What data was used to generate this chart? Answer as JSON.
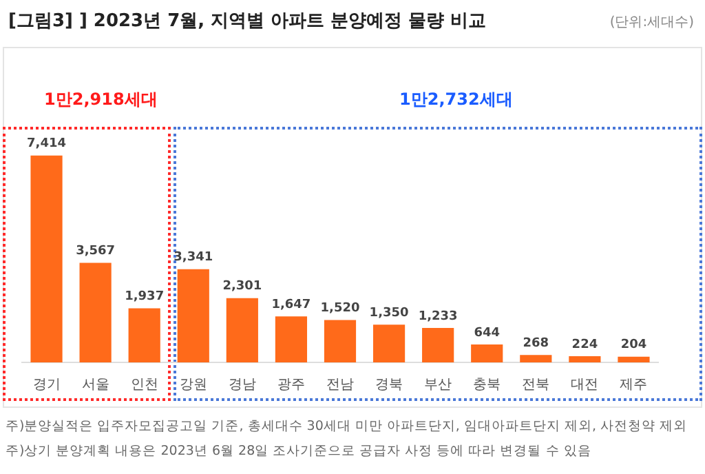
{
  "chart_data": {
    "type": "bar",
    "title": "[그림3] ] 2023년 7월, 지역별 아파트 분양예정 물량 비교",
    "subtitle": "(단위:세대수)",
    "categories": [
      "경기",
      "서울",
      "인천",
      "강원",
      "경남",
      "광주",
      "전남",
      "경북",
      "부산",
      "충북",
      "전북",
      "대전",
      "제주"
    ],
    "values": [
      7414,
      3567,
      1937,
      3341,
      2301,
      1647,
      1520,
      1350,
      1233,
      644,
      268,
      224,
      204
    ],
    "value_labels": [
      "7,414",
      "3,567",
      "1,937",
      "3,341",
      "2,301",
      "1,647",
      "1,520",
      "1,350",
      "1,233",
      "644",
      "268",
      "224",
      "204"
    ],
    "color": "#ff6a1a",
    "grid": false,
    "legend": false,
    "tick_labels": "x",
    "annotations": [
      "1만2,918세대",
      "1만2,732세대",
      "주)분양실적은 입주자모집공고일 기준, 총세대수 30세대 미만 아파트단지, 임대아파트단지 제외, 사전청약 제외",
      "주)상기 분양계획 내용은 2023년 6월 28일 조사기준으로 공급자 사정 등에 따라 변경될 수 있음"
    ]
  }
}
